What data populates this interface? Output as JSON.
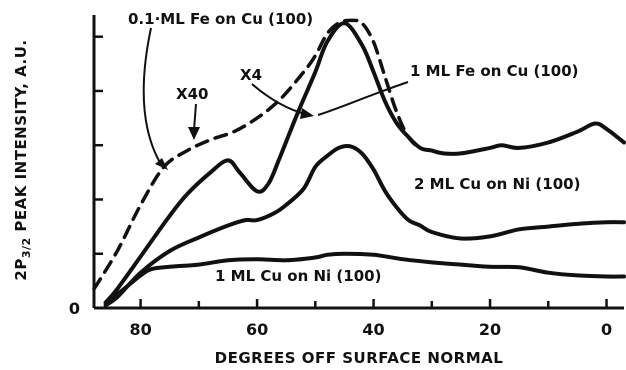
{
  "chart_data": {
    "type": "line",
    "title": "",
    "xlabel": "DEGREES OFF SURFACE NORMAL",
    "ylabel": "2P",
    "ylabel_subscript": "3/2",
    "ylabel_suffix": " PEAK INTENSITY, A.U.",
    "xlim": [
      88,
      -3
    ],
    "ylim": [
      0,
      5.4
    ],
    "x_reversed": true,
    "x_major_ticks": [
      80,
      60,
      40,
      20,
      0
    ],
    "x_tick_labels": [
      "80",
      "60",
      "40",
      "20",
      "0"
    ],
    "x_minor_ticks": [
      70,
      50,
      30,
      10
    ],
    "y_ticks": [
      0,
      1,
      2,
      3,
      4,
      5
    ],
    "y_tick_labels": [
      "0",
      "",
      "",
      "",
      "",
      ""
    ],
    "grid": false,
    "legend": "none",
    "series": [
      {
        "name": "1 ML Cu on Ni (100)",
        "style": "solid",
        "x": [
          86,
          84,
          80,
          78,
          75,
          70,
          65,
          60,
          55,
          50,
          48,
          45,
          40,
          35,
          30,
          25,
          20,
          15,
          10,
          5,
          0,
          -3
        ],
        "y": [
          0.1,
          0.25,
          0.6,
          0.72,
          0.76,
          0.8,
          0.88,
          0.9,
          0.88,
          0.93,
          0.98,
          1.0,
          0.98,
          0.9,
          0.84,
          0.8,
          0.76,
          0.75,
          0.65,
          0.6,
          0.58,
          0.58
        ]
      },
      {
        "name": "2 ML Cu on Ni (100)",
        "style": "solid",
        "x": [
          86,
          84,
          80,
          75,
          70,
          65,
          62,
          60,
          57,
          55,
          52,
          50,
          48,
          46,
          44,
          42,
          40,
          38,
          36,
          34,
          32,
          30,
          25,
          20,
          15,
          10,
          5,
          0,
          -3
        ],
        "y": [
          0.05,
          0.2,
          0.65,
          1.05,
          1.3,
          1.52,
          1.62,
          1.62,
          1.75,
          1.9,
          2.2,
          2.6,
          2.8,
          2.95,
          2.98,
          2.85,
          2.55,
          2.15,
          1.85,
          1.62,
          1.52,
          1.4,
          1.28,
          1.32,
          1.45,
          1.5,
          1.55,
          1.58,
          1.58
        ]
      },
      {
        "name": "1 ML Fe on Cu (100)",
        "style": "solid",
        "x": [
          86,
          84,
          80,
          75,
          72,
          68,
          65,
          63,
          60,
          58,
          56,
          53,
          50,
          48,
          45,
          42,
          40,
          38,
          36,
          34,
          32,
          30,
          28,
          25,
          20,
          18,
          15,
          10,
          5,
          2,
          0,
          -3
        ],
        "y": [
          0.1,
          0.35,
          0.95,
          1.7,
          2.1,
          2.5,
          2.72,
          2.5,
          2.15,
          2.3,
          2.8,
          3.6,
          4.35,
          4.9,
          5.25,
          4.85,
          4.35,
          3.8,
          3.4,
          3.15,
          2.95,
          2.9,
          2.85,
          2.85,
          2.95,
          3.0,
          2.95,
          3.05,
          3.25,
          3.4,
          3.3,
          3.05
        ]
      },
      {
        "name": "0.1 ML Fe on Cu (100)",
        "style": "dashed",
        "x": [
          88,
          84,
          80,
          76,
          72,
          68,
          64,
          60,
          56,
          52,
          50,
          48,
          46,
          44,
          42,
          40,
          38,
          36,
          34,
          32,
          30,
          28
        ],
        "y": [
          0.35,
          1.05,
          1.9,
          2.6,
          2.9,
          3.1,
          3.25,
          3.5,
          3.85,
          4.35,
          4.65,
          5.05,
          5.25,
          5.3,
          5.25,
          4.9,
          4.25,
          3.6,
          3.15,
          2.95,
          2.9,
          2.85
        ]
      }
    ],
    "annotations": [
      {
        "text": "0.1·ML Fe on Cu (100)",
        "series": "0.1 ML Fe on Cu (100)"
      },
      {
        "text": "1 ML Fe on Cu (100)",
        "series": "1 ML Fe on Cu (100)"
      },
      {
        "text": "2 ML Cu on Ni (100)",
        "series": "2 ML Cu on Ni (100)"
      },
      {
        "text": "1 ML Cu on Ni (100)",
        "series": "1 ML Cu on Ni (100)"
      },
      {
        "text": "X40",
        "series": "0.1 ML Fe on Cu (100)"
      },
      {
        "text": "X4",
        "series": "1 ML Fe on Cu (100)"
      }
    ]
  }
}
